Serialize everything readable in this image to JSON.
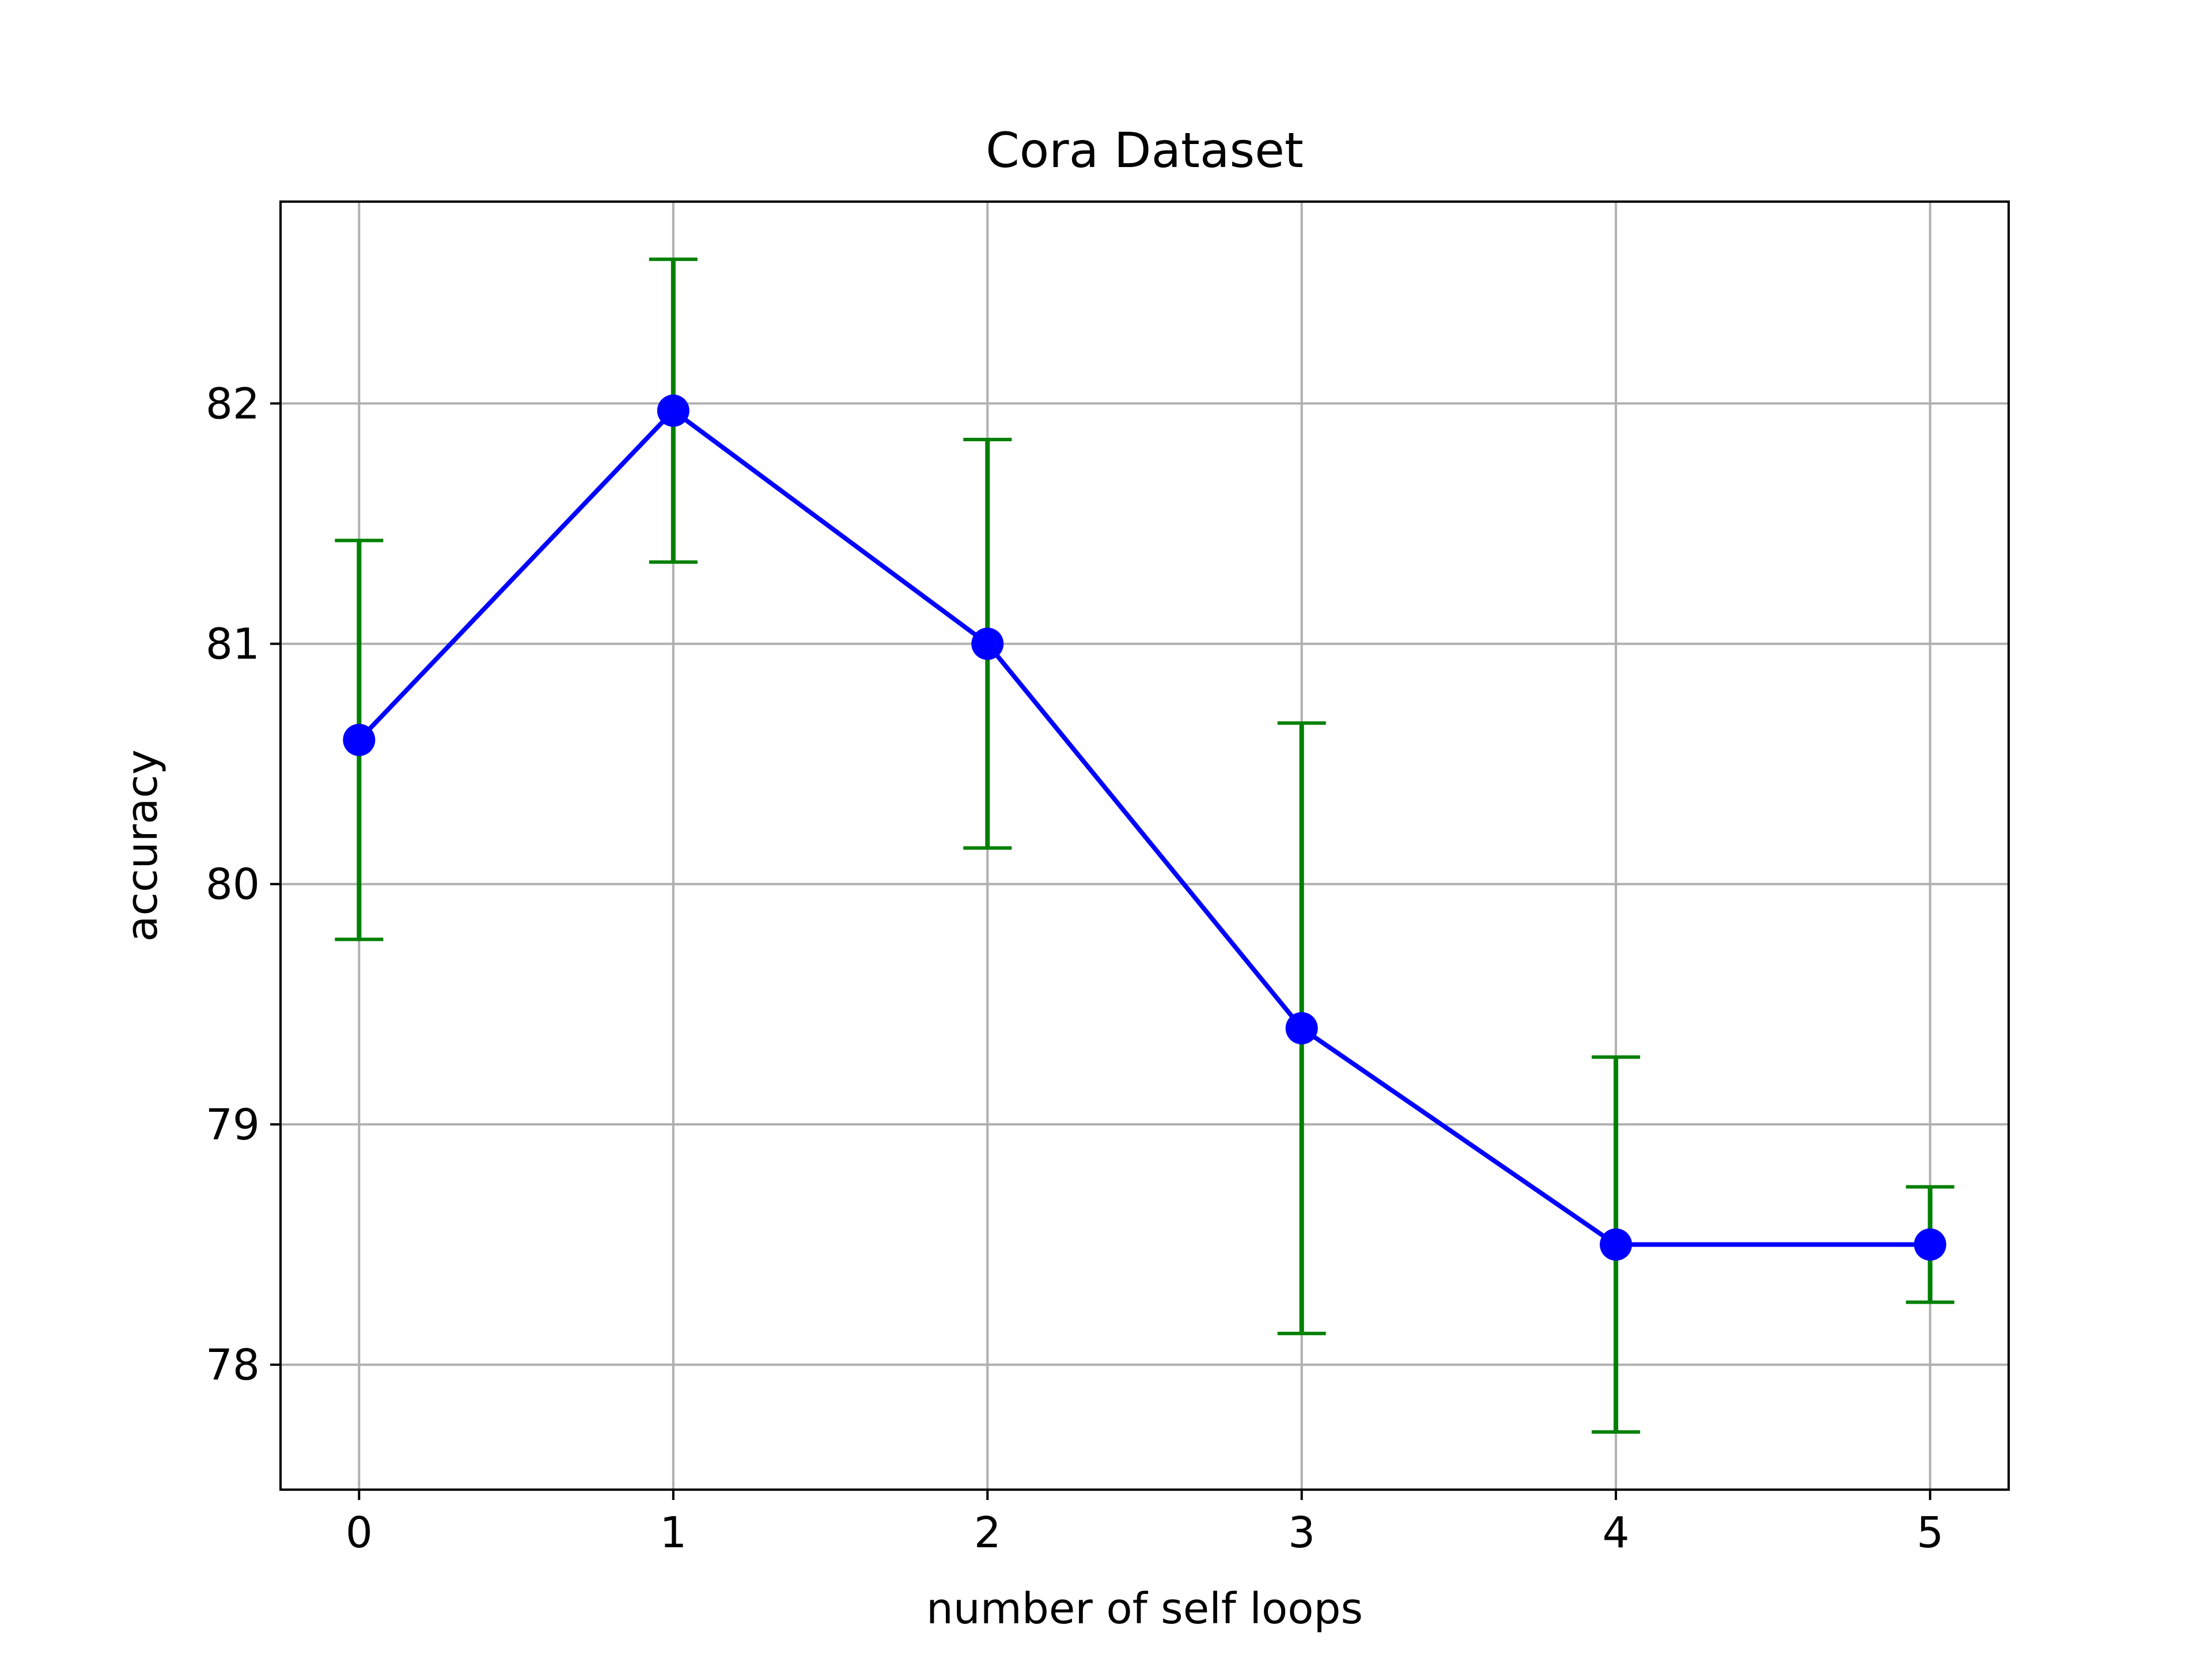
{
  "chart_data": {
    "type": "line",
    "title": "Cora Dataset",
    "xlabel": "number of self loops",
    "ylabel": "accuracy",
    "x": [
      0,
      1,
      2,
      3,
      4,
      5
    ],
    "series": [
      {
        "values": [
          80.6,
          81.97,
          81.0,
          79.4,
          78.5,
          78.5
        ],
        "error": [
          0.83,
          0.63,
          0.85,
          1.27,
          0.78,
          0.24
        ],
        "line_color": "#0000ff",
        "marker_color": "#0000ff",
        "error_color": "#008000"
      }
    ],
    "xlim": [
      -0.25,
      5.25
    ],
    "ylim": [
      77.48,
      82.84
    ],
    "xticks": [
      "0",
      "1",
      "2",
      "3",
      "4",
      "5"
    ],
    "yticks": [
      "78",
      "79",
      "80",
      "81",
      "82"
    ],
    "grid": true
  }
}
